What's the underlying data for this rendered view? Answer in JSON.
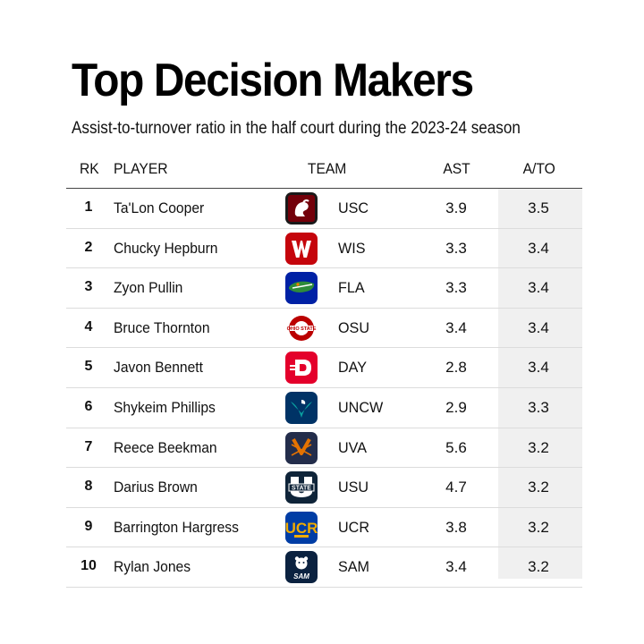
{
  "title": "Top Decision Makers",
  "subtitle": "Assist-to-turnover ratio in the half court during the 2023-24 season",
  "columns": {
    "rk": "RK",
    "player": "PLAYER",
    "team": "TEAM",
    "ast": "AST",
    "ato": "A/TO"
  },
  "colors": {
    "ato_column_shade": "#f0f0f0",
    "header_rule": "#444444",
    "row_divider": "#dcdcdc"
  },
  "rows": [
    {
      "rk": "1",
      "player": "Ta'Lon Cooper",
      "team": "USC",
      "ast": "3.9",
      "ato": "3.5",
      "logo_icon": "gamecock-icon",
      "logo_colors": [
        "#73000a",
        "#1a1a1a"
      ]
    },
    {
      "rk": "2",
      "player": "Chucky Hepburn",
      "team": "WIS",
      "ast": "3.3",
      "ato": "3.4",
      "logo_icon": "motion-w-icon",
      "logo_colors": [
        "#c5050c",
        "#ffffff"
      ]
    },
    {
      "rk": "3",
      "player": "Zyon Pullin",
      "team": "FLA",
      "ast": "3.3",
      "ato": "3.4",
      "logo_icon": "gator-head-icon",
      "logo_colors": [
        "#0021a5",
        "#2e8b3a"
      ]
    },
    {
      "rk": "4",
      "player": "Bruce Thornton",
      "team": "OSU",
      "ast": "3.4",
      "ato": "3.4",
      "logo_icon": "block-o-icon",
      "logo_colors": [
        "#bb0000",
        "#ffffff"
      ]
    },
    {
      "rk": "5",
      "player": "Javon Bennett",
      "team": "DAY",
      "ast": "2.8",
      "ato": "3.4",
      "logo_icon": "flyer-d-icon",
      "logo_colors": [
        "#e4002b",
        "#ffffff"
      ]
    },
    {
      "rk": "6",
      "player": "Shykeim Phillips",
      "team": "UNCW",
      "ast": "2.9",
      "ato": "3.3",
      "logo_icon": "seahawk-icon",
      "logo_colors": [
        "#003366",
        "#0aa0a0"
      ]
    },
    {
      "rk": "7",
      "player": "Reece Beekman",
      "team": "UVA",
      "ast": "5.6",
      "ato": "3.2",
      "logo_icon": "crossed-sabres-icon",
      "logo_colors": [
        "#232d4b",
        "#e57200"
      ]
    },
    {
      "rk": "8",
      "player": "Darius Brown",
      "team": "USU",
      "ast": "4.7",
      "ato": "3.2",
      "logo_icon": "state-u-icon",
      "logo_colors": [
        "#0f2439",
        "#ffffff"
      ]
    },
    {
      "rk": "9",
      "player": "Barrington Hargress",
      "team": "UCR",
      "ast": "3.8",
      "ato": "3.2",
      "logo_icon": "ucr-monogram-icon",
      "logo_colors": [
        "#003da5",
        "#f1ab00"
      ]
    },
    {
      "rk": "10",
      "player": "Rylan Jones",
      "team": "SAM",
      "ast": "3.4",
      "ato": "3.2",
      "logo_icon": "bearkat-icon",
      "logo_colors": [
        "#0b2240",
        "#ffffff"
      ]
    }
  ],
  "chart_data": {
    "type": "table",
    "title": "Top Decision Makers",
    "subtitle": "Assist-to-turnover ratio in the half court during the 2023-24 season",
    "columns": [
      "RK",
      "PLAYER",
      "TEAM",
      "AST",
      "A/TO"
    ],
    "rows": [
      [
        1,
        "Ta'Lon Cooper",
        "USC",
        3.9,
        3.5
      ],
      [
        2,
        "Chucky Hepburn",
        "WIS",
        3.3,
        3.4
      ],
      [
        3,
        "Zyon Pullin",
        "FLA",
        3.3,
        3.4
      ],
      [
        4,
        "Bruce Thornton",
        "OSU",
        3.4,
        3.4
      ],
      [
        5,
        "Javon Bennett",
        "DAY",
        2.8,
        3.4
      ],
      [
        6,
        "Shykeim Phillips",
        "UNCW",
        2.9,
        3.3
      ],
      [
        7,
        "Reece Beekman",
        "UVA",
        5.6,
        3.2
      ],
      [
        8,
        "Darius Brown",
        "USU",
        4.7,
        3.2
      ],
      [
        9,
        "Barrington Hargress",
        "UCR",
        3.8,
        3.2
      ],
      [
        10,
        "Rylan Jones",
        "SAM",
        3.4,
        3.2
      ]
    ]
  }
}
